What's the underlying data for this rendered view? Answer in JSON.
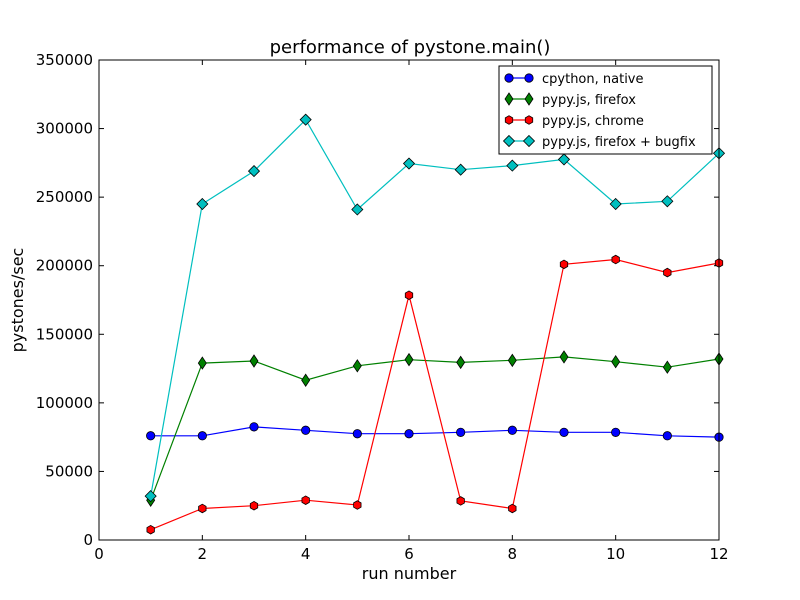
{
  "chart_data": {
    "type": "line",
    "title": "performance of pystone.main()",
    "xlabel": "run number",
    "ylabel": "pystones/sec",
    "xlim": [
      0,
      12
    ],
    "ylim": [
      0,
      350000
    ],
    "xticks": [
      0,
      2,
      4,
      6,
      8,
      10,
      12
    ],
    "yticks": [
      0,
      50000,
      100000,
      150000,
      200000,
      250000,
      300000,
      350000
    ],
    "grid": false,
    "legend_position": "top-right",
    "x": [
      1,
      2,
      3,
      4,
      5,
      6,
      7,
      8,
      9,
      10,
      11,
      12
    ],
    "series": [
      {
        "name": "cpython, native",
        "color": "#0000ff",
        "marker": "circle",
        "values": [
          76000,
          76000,
          82500,
          80000,
          77500,
          77500,
          78500,
          80000,
          78500,
          78500,
          76000,
          75000
        ]
      },
      {
        "name": "pypy.js, firefox",
        "color": "#008000",
        "marker": "thin-diamond",
        "values": [
          29000,
          129000,
          130500,
          116500,
          127000,
          131500,
          129500,
          131000,
          133500,
          130000,
          126000,
          132000
        ]
      },
      {
        "name": "pypy.js, chrome",
        "color": "#ff0000",
        "marker": "hexagon",
        "values": [
          7500,
          23000,
          25000,
          29000,
          25500,
          178500,
          28500,
          23000,
          201000,
          204500,
          195000,
          202000
        ]
      },
      {
        "name": "pypy.js, firefox + bugfix",
        "color": "#00bfbf",
        "marker": "diamond",
        "values": [
          32000,
          245000,
          269000,
          306500,
          241000,
          274500,
          270000,
          273000,
          277500,
          245000,
          247000,
          282000
        ]
      }
    ]
  }
}
